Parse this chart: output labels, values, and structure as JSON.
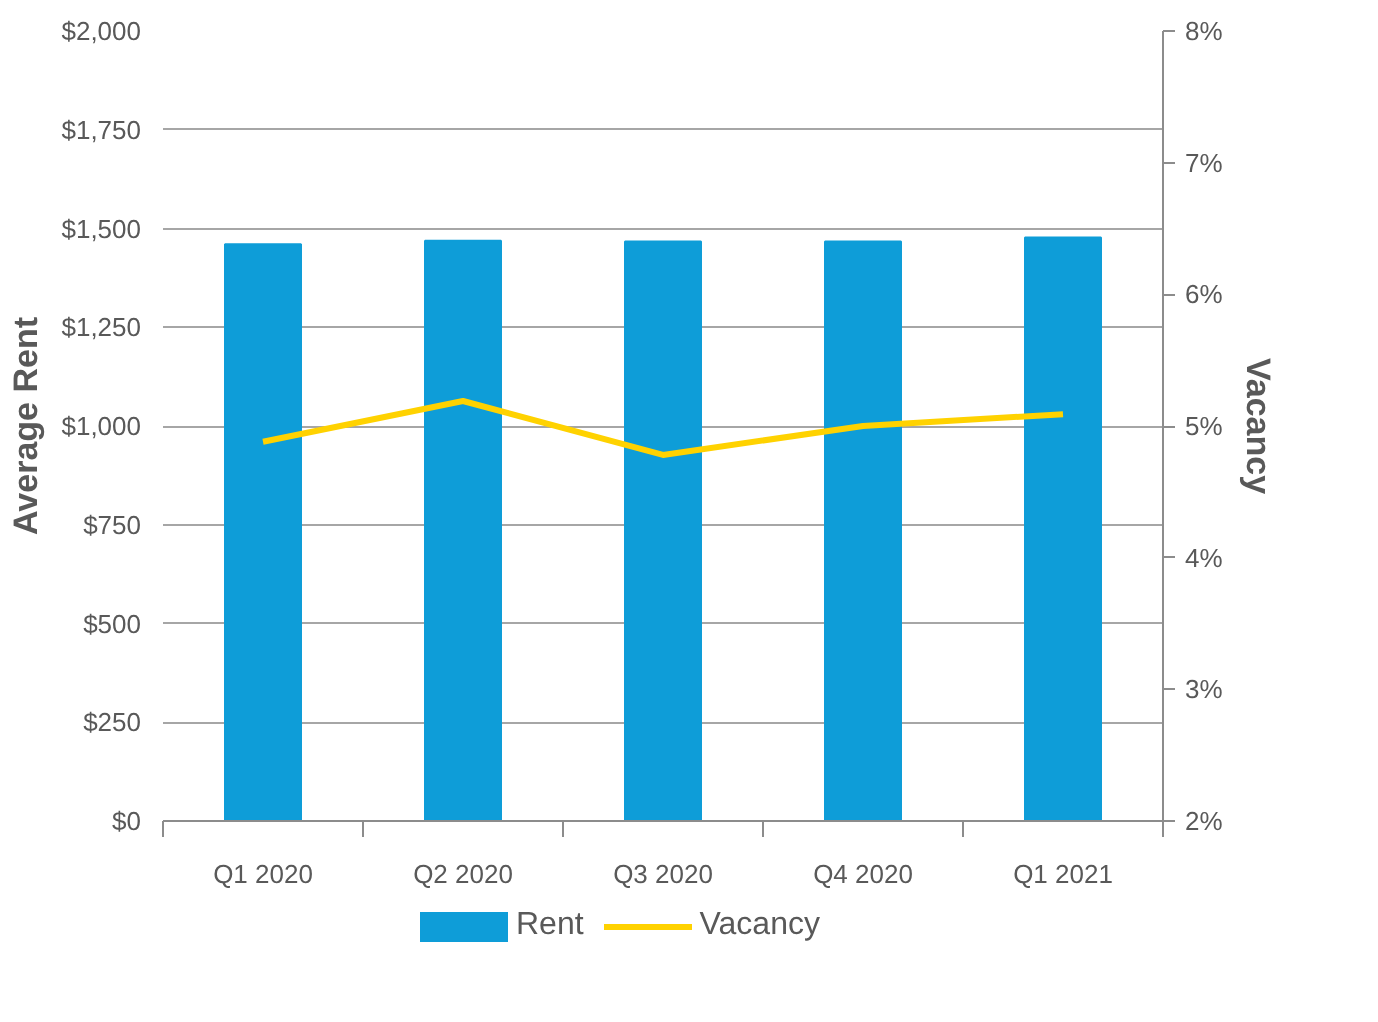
{
  "chart_data": {
    "type": "bar",
    "categories": [
      "Q1 2020",
      "Q2 2020",
      "Q3 2020",
      "Q4 2020",
      "Q1 2021"
    ],
    "ylabel": "Average Rent",
    "y2label": "Vacancy",
    "series": [
      {
        "name": "Rent",
        "color": "#0e9dd8",
        "values": [
          1460,
          1469,
          1467,
          1467,
          1477
        ]
      },
      {
        "name": "Vacancy",
        "type": "line",
        "axis": "y2",
        "color": "#ffd200",
        "values": [
          4.88,
          5.19,
          4.78,
          5.0,
          5.09
        ]
      }
    ],
    "ylim": [
      0,
      2000
    ],
    "yticks": [
      {
        "value": 0,
        "label": "$0"
      },
      {
        "value": 250,
        "label": "$250"
      },
      {
        "value": 500,
        "label": "$500"
      },
      {
        "value": 750,
        "label": "$750"
      },
      {
        "value": 1000,
        "label": "$1,000"
      },
      {
        "value": 1250,
        "label": "$1,250"
      },
      {
        "value": 1500,
        "label": "$1,500"
      },
      {
        "value": 1750,
        "label": "$1,750"
      },
      {
        "value": 2000,
        "label": "$2,000"
      }
    ],
    "y2lim": [
      2,
      8
    ],
    "y2ticks": [
      {
        "value": 2,
        "label": "2%"
      },
      {
        "value": 3,
        "label": "3%"
      },
      {
        "value": 4,
        "label": "4%"
      },
      {
        "value": 5,
        "label": "5%"
      },
      {
        "value": 6,
        "label": "6%"
      },
      {
        "value": 7,
        "label": "7%"
      },
      {
        "value": 8,
        "label": "8%"
      }
    ],
    "grid": "y",
    "legend": "bottom"
  }
}
